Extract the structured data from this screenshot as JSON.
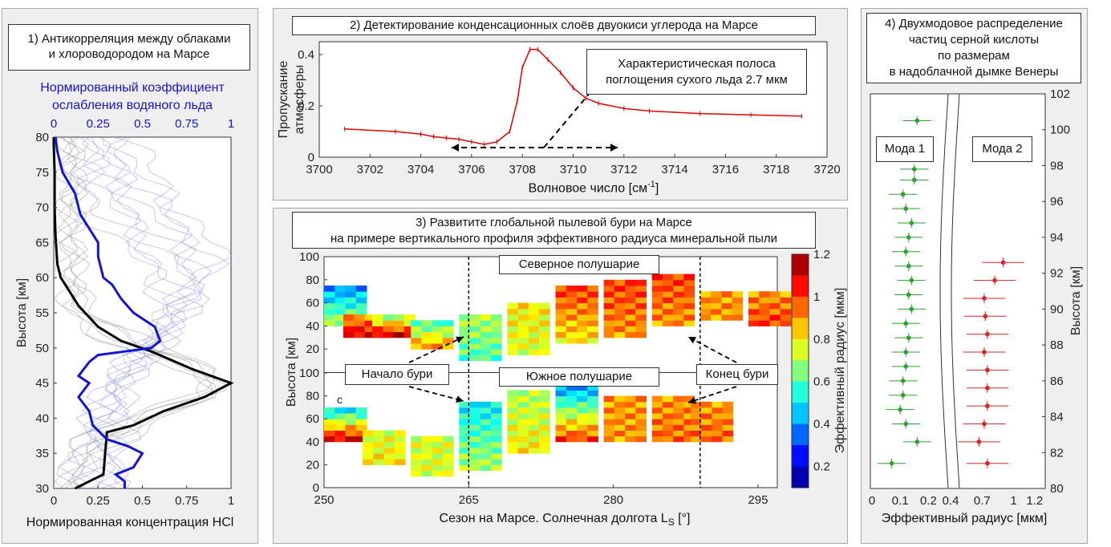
{
  "panel1": {
    "title_line1": "1) Антикорреляция между облаками",
    "title_line2": "и хлороводородом на Марсе",
    "top_axis_label_line1": "Нормированный коэффициент",
    "top_axis_label_line2": "ослабления водяного льда",
    "xlabel": "Нормированная концентрация HCl",
    "ylabel": "Высота [км]",
    "colors": {
      "water_ice": "#1414d2",
      "hcl": "#000000",
      "water_ice_thin": "#9999e6",
      "hcl_thin": "#9a9a9a"
    }
  },
  "panel2": {
    "title": "2) Детектирование конденсационных слоёв двуокиси углерода на Марсе",
    "annotation_line1": "Характеристическая полоса",
    "annotation_line2": "поглощения сухого льда 2.7 мкм",
    "ylabel_line1": "Пропускание",
    "ylabel_line2": "атмосферы",
    "xlabel": "Волновое число [см",
    "xlabel_sup": "-1",
    "xlabel_end": "]",
    "colors": {
      "spectrum": "#e00000"
    }
  },
  "panel3": {
    "title_line1": "3) Развитите глобальной пылевой бури на Марсе",
    "title_line2": "на примере вертикального профиля эффективного радиуса минеральной пыли",
    "north_label": "Северное полушарие",
    "south_label": "Южное полушарие",
    "storm_start": "Начало бури",
    "storm_end": "Конец бури",
    "ylabel": "Высота [км]",
    "xlabel": "Сезон на Марсе. Солнечная долгота L",
    "xlabel_sub": "S",
    "xlabel_end": " [°]",
    "colorbar_label": "Эффективный радиус [мкм]",
    "stray_letter": "c"
  },
  "panel4": {
    "title_line1": "4) Двухмодовое распределение",
    "title_line2": "частиц серной кислоты",
    "title_line3": "по размерам",
    "title_line4": "в надоблачной дымке Венеры",
    "mode1": "Мода 1",
    "mode2": "Мода 2",
    "xlabel": "Эффективный радиус [мкм]",
    "ylabel": "Высота [км]",
    "colors": {
      "mode1": "#2ca02c",
      "mode2": "#d62728"
    }
  },
  "chart_data": [
    {
      "type": "line",
      "title": "1) Антикорреляция между облаками и хлороводородом на Марсе",
      "xlabel": "Нормированная концентрация HCl",
      "x2label": "Нормированный коэффициент ослабления водяного льда",
      "ylabel": "Высота [км]",
      "xlim": [
        0,
        1
      ],
      "ylim": [
        30,
        80
      ],
      "xticks": [
        "0",
        "0.25",
        "0.5",
        "0.75",
        "1"
      ],
      "yticks": [
        "30",
        "35",
        "40",
        "45",
        "50",
        "55",
        "60",
        "65",
        "70",
        "75",
        "80"
      ],
      "series": [
        {
          "axis": "bottom",
          "color": "#000000",
          "points": [
            [
              0.12,
              30
            ],
            [
              0.2,
              31
            ],
            [
              0.28,
              32
            ],
            [
              0.29,
              35
            ],
            [
              0.3,
              38
            ],
            [
              0.45,
              39
            ],
            [
              0.62,
              41
            ],
            [
              0.85,
              43
            ],
            [
              1.0,
              45
            ],
            [
              0.78,
              47
            ],
            [
              0.55,
              49.5
            ],
            [
              0.38,
              51
            ],
            [
              0.25,
              53
            ],
            [
              0.14,
              56
            ],
            [
              0.09,
              58
            ],
            [
              0.04,
              60
            ],
            [
              0.02,
              62
            ],
            [
              0.01,
              66
            ],
            [
              0.005,
              70
            ],
            [
              0.005,
              75
            ],
            [
              0.0,
              79
            ],
            [
              0.0,
              80
            ]
          ]
        },
        {
          "axis": "top",
          "color": "#1414d2",
          "points": [
            [
              0.4,
              30
            ],
            [
              0.4,
              31
            ],
            [
              0.35,
              32
            ],
            [
              0.45,
              33
            ],
            [
              0.5,
              35
            ],
            [
              0.42,
              36
            ],
            [
              0.3,
              37
            ],
            [
              0.22,
              39
            ],
            [
              0.2,
              41
            ],
            [
              0.14,
              43
            ],
            [
              0.2,
              45
            ],
            [
              0.14,
              46
            ],
            [
              0.2,
              48
            ],
            [
              0.25,
              49
            ],
            [
              0.55,
              50
            ],
            [
              0.6,
              51
            ],
            [
              0.57,
              53
            ],
            [
              0.45,
              55
            ],
            [
              0.38,
              57
            ],
            [
              0.33,
              59
            ],
            [
              0.28,
              60
            ],
            [
              0.25,
              63
            ],
            [
              0.25,
              65
            ],
            [
              0.2,
              67
            ],
            [
              0.15,
              69
            ],
            [
              0.12,
              72
            ],
            [
              0.05,
              75
            ],
            [
              0.02,
              78
            ],
            [
              0.01,
              80
            ]
          ]
        }
      ]
    },
    {
      "type": "line",
      "title": "2) Детектирование конденсационных слоёв двуокиси углерода на Марсе",
      "xlabel": "Волновое число [см-1]",
      "ylabel": "Пропускание атмосферы",
      "xlim": [
        3700,
        3720
      ],
      "ylim": [
        0,
        0.45
      ],
      "xticks": [
        "3700",
        "3702",
        "3704",
        "3706",
        "3708",
        "3710",
        "3712",
        "3714",
        "3716",
        "3718",
        "3720"
      ],
      "yticks": [
        "0",
        "0.2",
        "0.4"
      ],
      "x": [
        3701,
        3703,
        3704,
        3704.5,
        3705,
        3705.5,
        3706,
        3706.5,
        3707,
        3707.5,
        3707.8,
        3708,
        3708.3,
        3708.6,
        3709,
        3709.5,
        3710,
        3710.5,
        3711,
        3712,
        3713,
        3715,
        3717,
        3719
      ],
      "y": [
        0.11,
        0.1,
        0.09,
        0.08,
        0.075,
        0.07,
        0.06,
        0.05,
        0.06,
        0.1,
        0.22,
        0.35,
        0.42,
        0.42,
        0.38,
        0.33,
        0.27,
        0.23,
        0.21,
        0.19,
        0.18,
        0.17,
        0.165,
        0.16
      ]
    },
    {
      "type": "heatmap",
      "title": "3) Развитите глобальной пылевой бури на Марсе на примере вертикального профиля эффективного радиуса минеральной пыли",
      "xlabel": "Сезон на Марсе. Солнечная долгота LS [°]",
      "ylabel": "Высота [км]",
      "xlim": [
        250,
        297
      ],
      "ylim": [
        0,
        100
      ],
      "xticks": [
        "250",
        "265",
        "280",
        "295"
      ],
      "yticks": [
        "0",
        "20",
        "40",
        "60",
        "80",
        "100"
      ],
      "clim": [
        0.1,
        1.2
      ],
      "cticks": [
        "0.2",
        "0.4",
        "0.6",
        "0.8",
        "1",
        "1.2"
      ],
      "storm_start_ls": 265,
      "storm_end_ls": 289,
      "north_rows": [
        {
          "ls": 251,
          "alt": [
            40,
            70
          ],
          "r": [
            0.7,
            0.4
          ]
        },
        {
          "ls": 253,
          "alt": [
            30,
            45
          ],
          "r": [
            1.1,
            0.9
          ]
        },
        {
          "ls": 256,
          "alt": [
            30,
            45
          ],
          "r": [
            1.1,
            0.7
          ]
        },
        {
          "ls": 260,
          "alt": [
            20,
            40
          ],
          "r": [
            0.9,
            0.6
          ]
        },
        {
          "ls": 265,
          "alt": [
            10,
            45
          ],
          "r": [
            0.6,
            0.7
          ]
        },
        {
          "ls": 270,
          "alt": [
            15,
            55
          ],
          "r": [
            0.75,
            0.8
          ]
        },
        {
          "ls": 275,
          "alt": [
            25,
            70
          ],
          "r": [
            0.8,
            1.0
          ]
        },
        {
          "ls": 280,
          "alt": [
            30,
            75
          ],
          "r": [
            0.9,
            1.0
          ]
        },
        {
          "ls": 285,
          "alt": [
            40,
            80
          ],
          "r": [
            0.9,
            1.0
          ]
        },
        {
          "ls": 290,
          "alt": [
            45,
            65
          ],
          "r": [
            0.9,
            0.9
          ]
        },
        {
          "ls": 295,
          "alt": [
            40,
            65
          ],
          "r": [
            1.0,
            0.9
          ]
        }
      ],
      "south_rows": [
        {
          "ls": 251,
          "alt": [
            40,
            65
          ],
          "r": [
            1.1,
            0.5
          ]
        },
        {
          "ls": 255,
          "alt": [
            20,
            45
          ],
          "r": [
            0.8,
            0.75
          ]
        },
        {
          "ls": 260,
          "alt": [
            10,
            40
          ],
          "r": [
            0.75,
            0.75
          ]
        },
        {
          "ls": 265,
          "alt": [
            15,
            70
          ],
          "r": [
            0.7,
            0.5
          ]
        },
        {
          "ls": 270,
          "alt": [
            30,
            80
          ],
          "r": [
            0.8,
            0.7
          ]
        },
        {
          "ls": 275,
          "alt": [
            40,
            85
          ],
          "r": [
            1.0,
            0.4
          ]
        },
        {
          "ls": 280,
          "alt": [
            40,
            75
          ],
          "r": [
            0.9,
            0.9
          ]
        },
        {
          "ls": 285,
          "alt": [
            40,
            75
          ],
          "r": [
            0.95,
            0.9
          ]
        },
        {
          "ls": 289,
          "alt": [
            40,
            70
          ],
          "r": [
            0.95,
            0.9
          ]
        }
      ]
    },
    {
      "type": "scatter",
      "title": "4) Двухмодовое распределение частиц серной кислоты по размерам в надоблачной дымке Венеры",
      "xlabel": "Эффективный радиус [мкм]",
      "ylabel": "Высота [км]",
      "ylim": [
        80,
        102
      ],
      "yticks": [
        "80",
        "82",
        "84",
        "86",
        "88",
        "90",
        "92",
        "94",
        "96",
        "98",
        "100",
        "102"
      ],
      "mode1_xticks": [
        "0",
        "0.1",
        "0.2"
      ],
      "mode2_xticks": [
        "0.4",
        "0.7",
        "1",
        "1.2"
      ],
      "series": [
        {
          "name": "Мода 1",
          "color": "#2ca02c",
          "points": [
            [
              0.07,
              81.4
            ],
            [
              0.16,
              82.6
            ],
            [
              0.12,
              83.6
            ],
            [
              0.1,
              84.4
            ],
            [
              0.11,
              85.2
            ],
            [
              0.11,
              86.0
            ],
            [
              0.12,
              86.8
            ],
            [
              0.12,
              87.6
            ],
            [
              0.13,
              88.4
            ],
            [
              0.12,
              89.2
            ],
            [
              0.14,
              90.0
            ],
            [
              0.13,
              90.8
            ],
            [
              0.14,
              91.6
            ],
            [
              0.13,
              92.4
            ],
            [
              0.12,
              93.2
            ],
            [
              0.13,
              94.0
            ],
            [
              0.14,
              94.8
            ],
            [
              0.12,
              95.6
            ],
            [
              0.11,
              96.4
            ],
            [
              0.15,
              97.2
            ],
            [
              0.15,
              97.8
            ],
            [
              0.16,
              100.5
            ]
          ],
          "xerr": 0.05
        },
        {
          "name": "Мода 2",
          "color": "#d62728",
          "points": [
            [
              0.75,
              81.4
            ],
            [
              0.67,
              82.6
            ],
            [
              0.72,
              83.6
            ],
            [
              0.75,
              84.6
            ],
            [
              0.75,
              85.6
            ],
            [
              0.75,
              86.6
            ],
            [
              0.72,
              87.6
            ],
            [
              0.75,
              88.6
            ],
            [
              0.73,
              89.6
            ],
            [
              0.72,
              90.6
            ],
            [
              0.82,
              91.6
            ],
            [
              0.9,
              92.6
            ]
          ],
          "xerr": 0.2
        }
      ]
    }
  ]
}
